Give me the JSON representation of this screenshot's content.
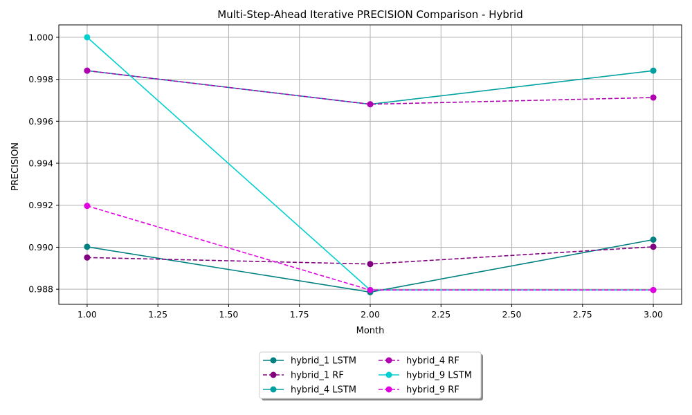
{
  "chart_data": {
    "type": "line",
    "title": "Multi-Step-Ahead Iterative PRECISION Comparison - Hybrid",
    "xlabel": "Month",
    "ylabel": "PRECISION",
    "xlim": [
      0.9,
      3.1
    ],
    "ylim": [
      0.98728,
      1.00059
    ],
    "xticks": [
      1.0,
      1.25,
      1.5,
      1.75,
      2.0,
      2.25,
      2.5,
      2.75,
      3.0
    ],
    "xtick_labels": [
      "1.00",
      "1.25",
      "1.50",
      "1.75",
      "2.00",
      "2.25",
      "2.50",
      "2.75",
      "3.00"
    ],
    "yticks": [
      0.988,
      0.99,
      0.992,
      0.994,
      0.996,
      0.998,
      1.0
    ],
    "ytick_labels": [
      "0.988",
      "0.990",
      "0.992",
      "0.994",
      "0.996",
      "0.998",
      "1.000"
    ],
    "grid": true,
    "legend_position": "bottom-center, below plot, 2 columns",
    "x": [
      1,
      2,
      3
    ],
    "series": [
      {
        "name": "hybrid_1 LSTM",
        "values": [
          0.99002,
          0.98786,
          0.99036
        ],
        "color": "#008080",
        "dashed": false
      },
      {
        "name": "hybrid_1 RF",
        "values": [
          0.98951,
          0.9892,
          0.99002
        ],
        "color": "#800080",
        "dashed": true
      },
      {
        "name": "hybrid_4 LSTM",
        "values": [
          0.99841,
          0.99681,
          0.99841
        ],
        "color": "#00a0a0",
        "dashed": false
      },
      {
        "name": "hybrid_4 RF",
        "values": [
          0.99841,
          0.99681,
          0.99713
        ],
        "color": "#b000b0",
        "dashed": true
      },
      {
        "name": "hybrid_9 LSTM",
        "values": [
          1.0,
          0.98796,
          0.98796
        ],
        "color": "#00d0d0",
        "dashed": false
      },
      {
        "name": "hybrid_9 RF",
        "values": [
          0.99197,
          0.98796,
          0.98796
        ],
        "color": "#e000e0",
        "dashed": true
      }
    ]
  }
}
